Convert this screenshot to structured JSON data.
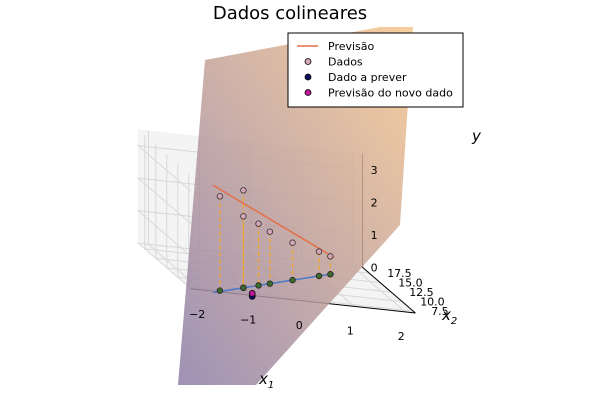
{
  "chart_data": {
    "type": "scatter3d",
    "title": "Dados colineares",
    "axes": {
      "x": {
        "label_base": "x",
        "label_sub": "1",
        "ticks": [
          -2,
          -1,
          0,
          1,
          2
        ],
        "tick_labels": [
          "−2",
          "−1",
          "0",
          "1",
          "2"
        ],
        "range": [
          -2.1,
          2.1
        ]
      },
      "y": {
        "label_base": "x",
        "label_sub": "2",
        "ticks": [
          7.5,
          10,
          12.5,
          15,
          17.5
        ],
        "tick_labels": [
          "7.5",
          "10.0",
          "12.5",
          "15.0",
          "17.5"
        ],
        "range": [
          7,
          19
        ]
      },
      "z": {
        "label": "y",
        "ticks": [
          0,
          1,
          2,
          3
        ],
        "tick_labels": [
          "0",
          "1",
          "2",
          "3"
        ],
        "range": [
          0,
          3.3
        ]
      }
    },
    "grid": true,
    "legend": {
      "position": "top-right",
      "entries": [
        {
          "label": "Previsão",
          "kind": "line",
          "color": "#e26f46"
        },
        {
          "label": "Dados",
          "kind": "marker",
          "color": "#d4a5b7"
        },
        {
          "label": "Dado a prever",
          "kind": "marker",
          "color": "#101060"
        },
        {
          "label": "Previsão do novo dado",
          "kind": "marker",
          "color": "#c0189b"
        }
      ]
    },
    "series": {
      "dados": [
        {
          "x1": -1.6,
          "x2": 7.4,
          "y": 2.9
        },
        {
          "x1": -1.0,
          "x2": 9.0,
          "y": 3.0
        },
        {
          "x1": -1.0,
          "x2": 9.0,
          "y": 2.2
        },
        {
          "x1": -0.6,
          "x2": 10.2,
          "y": 1.9
        },
        {
          "x1": -0.3,
          "x2": 11.1,
          "y": 1.6
        },
        {
          "x1": 0.3,
          "x2": 12.9,
          "y": 1.15
        },
        {
          "x1": 1.0,
          "x2": 15.0,
          "y": 0.75
        },
        {
          "x1": 1.3,
          "x2": 15.9,
          "y": 0.55
        }
      ],
      "dado_a_prever": {
        "x1": -1.0,
        "x2": 7.0
      },
      "previsao_novo_dado": {
        "x1": -1.0,
        "x2": 7.0,
        "y": 0.0
      },
      "previsao_line": [
        {
          "x1": -1.8,
          "x2": 6.6,
          "y": 3.3
        },
        {
          "x1": 1.4,
          "x2": 16.2,
          "y": 0.5
        }
      ],
      "projection_line": [
        {
          "x1": -1.8,
          "x2": 6.6
        },
        {
          "x1": 1.4,
          "x2": 16.2
        }
      ]
    },
    "colors": {
      "surface_low": "#8e7ea8",
      "surface_high": "#f7c68c",
      "projection_line": "#4a78c7",
      "drop_line": "#f2a52b",
      "grid": "#d8d8d8",
      "pane": "#f4f4f4"
    }
  }
}
